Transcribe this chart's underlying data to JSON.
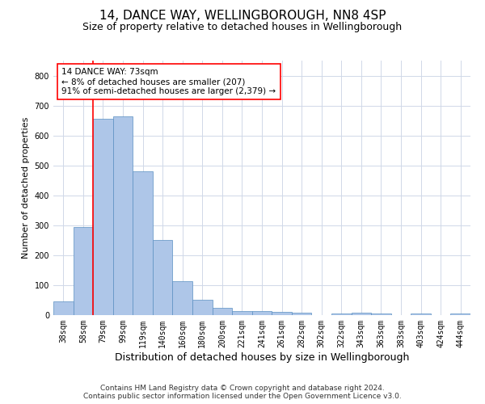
{
  "title1": "14, DANCE WAY, WELLINGBOROUGH, NN8 4SP",
  "title2": "Size of property relative to detached houses in Wellingborough",
  "xlabel": "Distribution of detached houses by size in Wellingborough",
  "ylabel": "Number of detached properties",
  "categories": [
    "38sqm",
    "58sqm",
    "79sqm",
    "99sqm",
    "119sqm",
    "140sqm",
    "160sqm",
    "180sqm",
    "200sqm",
    "221sqm",
    "241sqm",
    "261sqm",
    "282sqm",
    "302sqm",
    "322sqm",
    "343sqm",
    "363sqm",
    "383sqm",
    "403sqm",
    "424sqm",
    "444sqm"
  ],
  "values": [
    45,
    293,
    655,
    665,
    480,
    250,
    113,
    50,
    25,
    14,
    13,
    11,
    7,
    0,
    6,
    7,
    5,
    0,
    5,
    0,
    5
  ],
  "bar_color": "#aec6e8",
  "bar_edge_color": "#5a8fc2",
  "grid_color": "#d0d8e8",
  "vline_x_index": 1.5,
  "vline_color": "red",
  "annotation_text": "14 DANCE WAY: 73sqm\n← 8% of detached houses are smaller (207)\n91% of semi-detached houses are larger (2,379) →",
  "annotation_box_color": "white",
  "annotation_box_edge": "red",
  "footnote1": "Contains HM Land Registry data © Crown copyright and database right 2024.",
  "footnote2": "Contains public sector information licensed under the Open Government Licence v3.0.",
  "ylim": [
    0,
    850
  ],
  "yticks": [
    0,
    100,
    200,
    300,
    400,
    500,
    600,
    700,
    800
  ],
  "title1_fontsize": 11,
  "title2_fontsize": 9,
  "xlabel_fontsize": 9,
  "ylabel_fontsize": 8,
  "tick_fontsize": 7,
  "annotation_fontsize": 7.5,
  "footnote_fontsize": 6.5
}
